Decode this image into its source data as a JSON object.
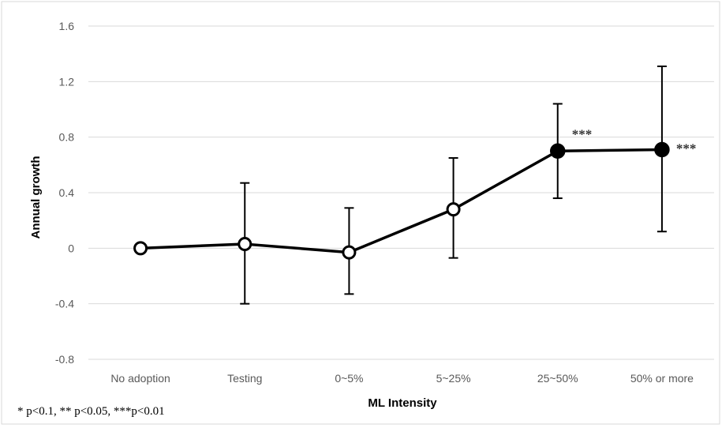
{
  "chart_data": {
    "type": "line",
    "xlabel": "ML Intensity",
    "ylabel": "Annual growth",
    "ylim": [
      -0.8,
      1.6
    ],
    "yticks": [
      -0.8,
      -0.4,
      0,
      0.4,
      0.8,
      1.2,
      1.6
    ],
    "ytick_labels": [
      "-0.8",
      "-0.4",
      "0",
      "0.4",
      "0.8",
      "1.2",
      "1.6"
    ],
    "grid": "horizontal",
    "categories": [
      "No adoption",
      "Testing",
      "0~5%",
      "5~25%",
      "25~50%",
      "50% or more"
    ],
    "series": [
      {
        "values": [
          0.0,
          0.03,
          -0.03,
          0.28,
          0.7,
          0.71
        ],
        "error_low": [
          0.0,
          -0.4,
          -0.33,
          -0.07,
          0.36,
          0.12
        ],
        "error_high": [
          0.0,
          0.47,
          0.29,
          0.65,
          1.04,
          1.31
        ],
        "marker_fill": [
          "white",
          "white",
          "white",
          "white",
          "black",
          "black"
        ],
        "annotations": [
          "",
          "",
          "",
          "",
          "***",
          "***"
        ]
      }
    ],
    "footnote": "* p<0.1, ** p<0.05, ***p<0.01",
    "colors": {
      "line": "#000000",
      "grid": "#d9d9d9",
      "tick_text": "#595959"
    }
  }
}
